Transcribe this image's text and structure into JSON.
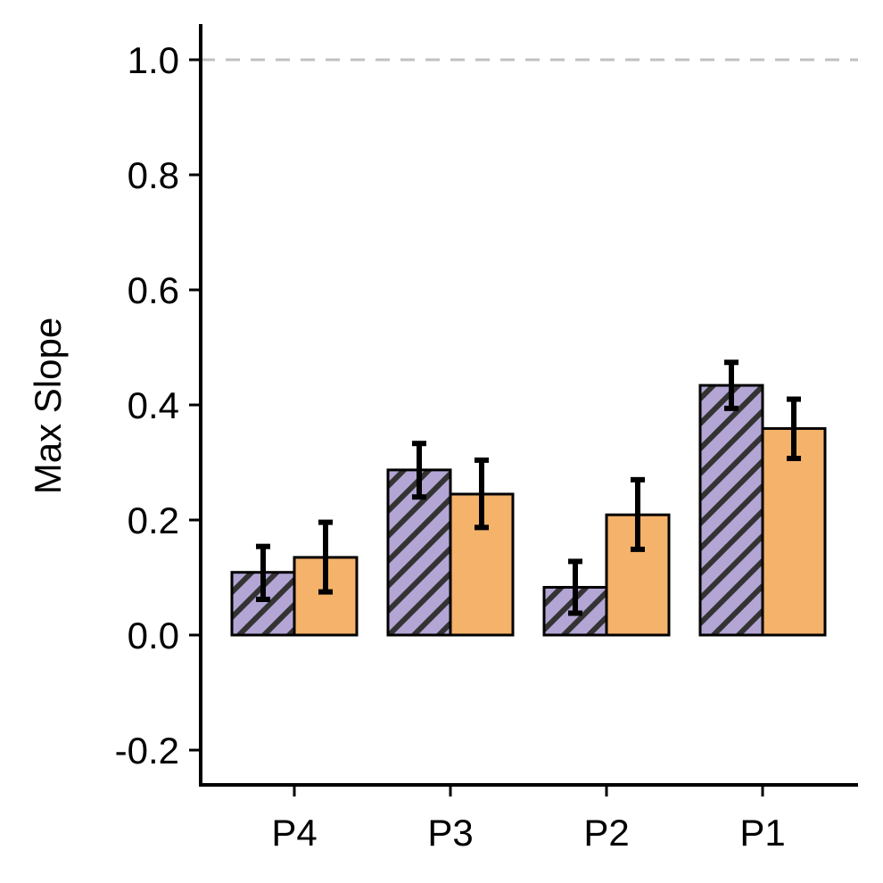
{
  "chart_data": {
    "type": "bar",
    "title": "",
    "xlabel": "",
    "ylabel": "Max Slope",
    "categories": [
      "P4",
      "P3",
      "P2",
      "P1"
    ],
    "ylim": [
      -0.26,
      1.06
    ],
    "yticks": [
      -0.2,
      0.0,
      0.2,
      0.4,
      0.6,
      0.8,
      1.0
    ],
    "ytick_labels": [
      "-0.2",
      "0.0",
      "0.2",
      "0.4",
      "0.6",
      "0.8",
      "1.0"
    ],
    "reference_line": {
      "y": 1.0,
      "style": "dashed",
      "color": "#c0c0c0"
    },
    "grid": false,
    "legend": "none",
    "series": [
      {
        "fill": "hatched",
        "color": "#b3a5d4",
        "hatch_color": "#333333",
        "values": [
          0.109,
          0.287,
          0.083,
          0.434
        ],
        "error_low": [
          0.062,
          0.24,
          0.038,
          0.394
        ],
        "error_high": [
          0.154,
          0.333,
          0.128,
          0.474
        ]
      },
      {
        "fill": "solid",
        "color": "#f5b26b",
        "values": [
          0.135,
          0.245,
          0.209,
          0.359
        ],
        "error_low": [
          0.075,
          0.187,
          0.149,
          0.307
        ],
        "error_high": [
          0.196,
          0.304,
          0.27,
          0.41
        ]
      }
    ]
  }
}
